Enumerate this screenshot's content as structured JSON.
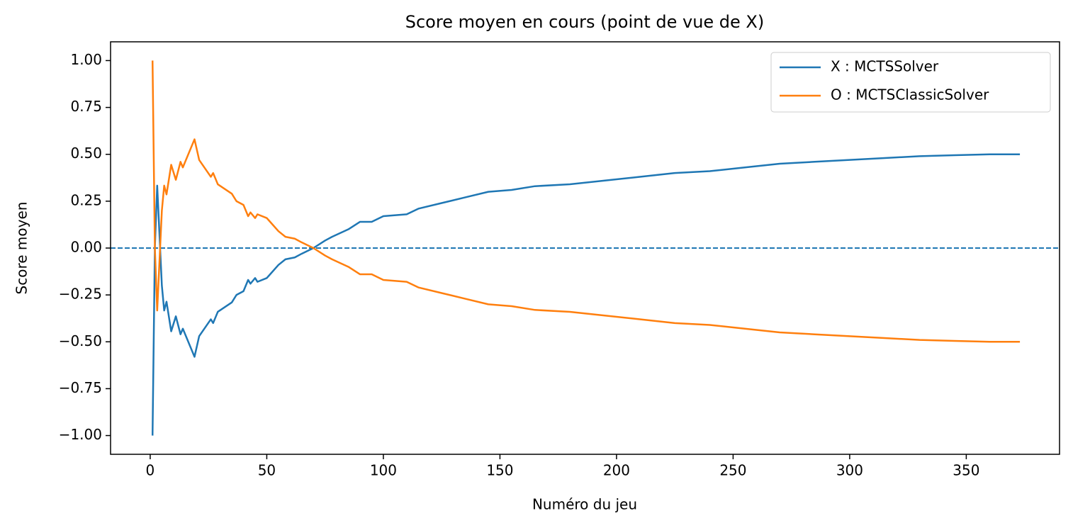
{
  "chart_data": {
    "type": "line",
    "title": "Score moyen en cours (point de vue de X)",
    "xlabel": "Numéro du jeu",
    "ylabel": "Score moyen",
    "x": [
      1,
      2,
      3,
      5,
      6,
      7,
      9,
      11,
      13,
      14,
      19,
      21,
      26,
      27,
      29,
      35,
      37,
      40,
      42,
      43,
      45,
      46,
      50,
      55,
      58,
      62,
      65,
      70,
      75,
      78,
      85,
      90,
      95,
      100,
      110,
      115,
      125,
      135,
      145,
      155,
      165,
      180,
      195,
      210,
      225,
      240,
      255,
      270,
      285,
      300,
      315,
      330,
      345,
      360,
      373
    ],
    "series": [
      {
        "name": "X : MCTSSolver",
        "color": "#1f77b4",
        "values": [
          -1,
          0,
          0.333,
          -0.2,
          -0.333,
          -0.286,
          -0.444,
          -0.364,
          -0.46,
          -0.43,
          -0.58,
          -0.47,
          -0.38,
          -0.4,
          -0.34,
          -0.29,
          -0.25,
          -0.23,
          -0.17,
          -0.19,
          -0.16,
          -0.18,
          -0.16,
          -0.09,
          -0.06,
          -0.05,
          -0.03,
          0,
          0.04,
          0.06,
          0.1,
          0.14,
          0.14,
          0.17,
          0.18,
          0.21,
          0.24,
          0.27,
          0.3,
          0.31,
          0.33,
          0.34,
          0.36,
          0.38,
          0.4,
          0.41,
          0.43,
          0.45,
          0.46,
          0.47,
          0.48,
          0.49,
          0.495,
          0.5,
          0.5
        ]
      },
      {
        "name": "O : MCTSClassicSolver",
        "color": "#ff7f0e",
        "values": [
          1,
          0,
          -0.333,
          0.2,
          0.333,
          0.286,
          0.444,
          0.364,
          0.46,
          0.43,
          0.58,
          0.47,
          0.38,
          0.4,
          0.34,
          0.29,
          0.25,
          0.23,
          0.17,
          0.19,
          0.16,
          0.18,
          0.16,
          0.09,
          0.06,
          0.05,
          0.03,
          0,
          -0.04,
          -0.06,
          -0.1,
          -0.14,
          -0.14,
          -0.17,
          -0.18,
          -0.21,
          -0.24,
          -0.27,
          -0.3,
          -0.31,
          -0.33,
          -0.34,
          -0.36,
          -0.38,
          -0.4,
          -0.41,
          -0.43,
          -0.45,
          -0.46,
          -0.47,
          -0.48,
          -0.49,
          -0.495,
          -0.5,
          -0.5
        ]
      }
    ],
    "xlim": [
      -17,
      390
    ],
    "ylim": [
      -1.1,
      1.1
    ],
    "xticks": [
      0,
      50,
      100,
      150,
      200,
      250,
      300,
      350
    ],
    "yticks": [
      {
        "value": -1,
        "label": "−1.00"
      },
      {
        "value": -0.75,
        "label": "−0.75"
      },
      {
        "value": -0.5,
        "label": "−0.50"
      },
      {
        "value": -0.25,
        "label": "−0.25"
      },
      {
        "value": 0,
        "label": "0.00"
      },
      {
        "value": 0.25,
        "label": "0.25"
      },
      {
        "value": 0.5,
        "label": "0.50"
      },
      {
        "value": 0.75,
        "label": "0.75"
      },
      {
        "value": 1,
        "label": "1.00"
      }
    ],
    "axhline": {
      "y": 0,
      "color": "#1f77b4",
      "style": "dashed"
    },
    "legend": "upper right",
    "grid": false
  }
}
